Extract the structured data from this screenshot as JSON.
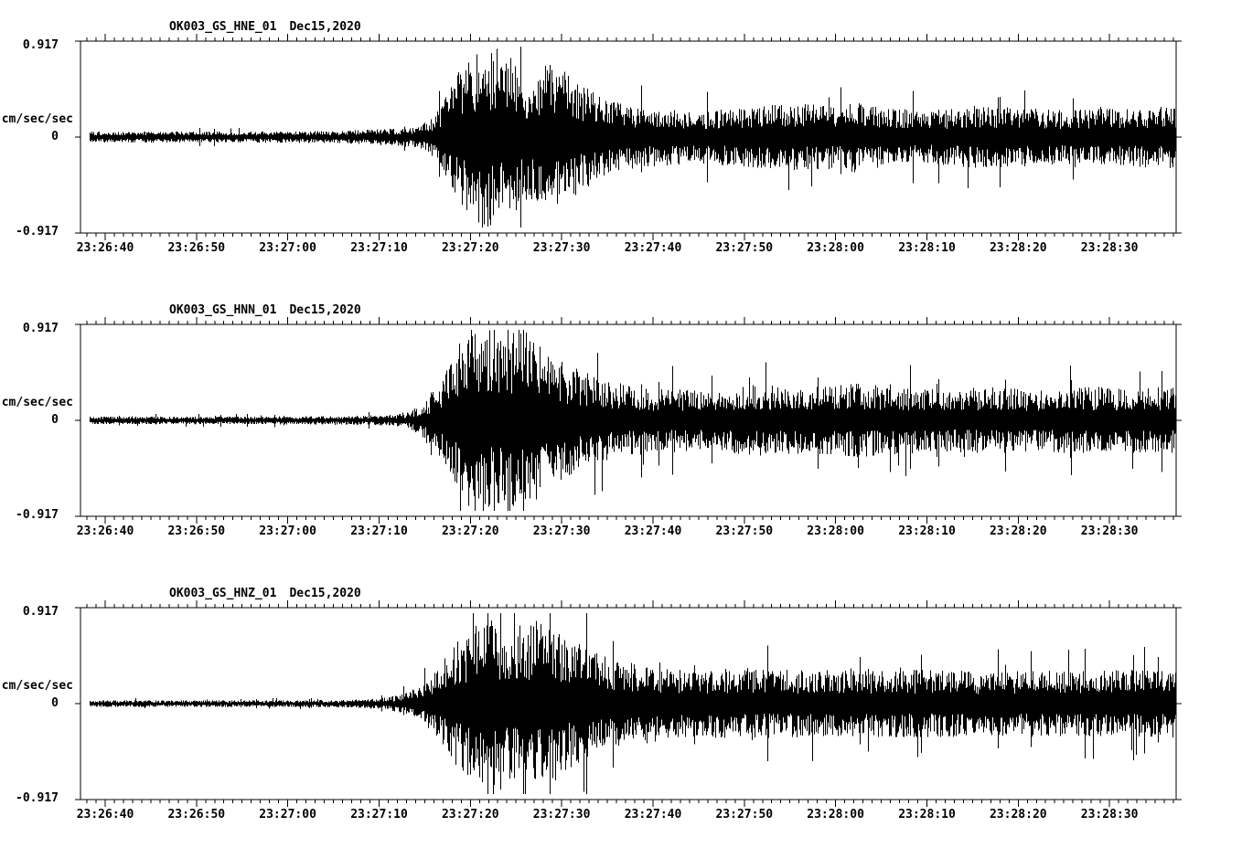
{
  "style": {
    "background": "#ffffff",
    "trace_color": "#000000",
    "axis_color": "#000000"
  },
  "chart_data": [
    {
      "type": "line",
      "subtype": "seismogram-minmax",
      "title": "OK003_GS_HNE_01",
      "date": "Dec15,2020",
      "ylabel": "cm/sec/sec",
      "ylim": [
        -0.917,
        0.917
      ],
      "yticks": [
        0.917,
        0,
        -0.917
      ],
      "ytick_labels": [
        "0.917",
        "0",
        "-0.917"
      ],
      "xtick_labels": [
        "23:26:40",
        "23:26:50",
        "23:27:00",
        "23:27:10",
        "23:27:20",
        "23:27:30",
        "23:27:40",
        "23:27:50",
        "23:28:00",
        "23:28:10",
        "23:28:20",
        "23:28:30"
      ],
      "xtick_offset_seconds": 2.7,
      "xtick_interval_seconds": 10,
      "minor_tick_seconds": 1,
      "duration_seconds": 120,
      "trace_start_seconds": 1.0,
      "grid": false,
      "legend": false,
      "envelope_t_amp": [
        [
          0,
          0.05
        ],
        [
          20,
          0.05
        ],
        [
          28,
          0.055
        ],
        [
          32,
          0.07
        ],
        [
          35,
          0.08
        ],
        [
          37,
          0.1
        ],
        [
          39,
          0.22
        ],
        [
          41,
          0.55
        ],
        [
          43,
          0.75
        ],
        [
          45,
          0.82
        ],
        [
          47,
          0.72
        ],
        [
          49,
          0.55
        ],
        [
          51,
          0.66
        ],
        [
          53,
          0.6
        ],
        [
          56,
          0.42
        ],
        [
          59,
          0.3
        ],
        [
          63,
          0.26
        ],
        [
          68,
          0.24
        ],
        [
          73,
          0.27
        ],
        [
          78,
          0.3
        ],
        [
          83,
          0.28
        ],
        [
          85,
          0.33
        ],
        [
          88,
          0.26
        ],
        [
          93,
          0.24
        ],
        [
          98,
          0.28
        ],
        [
          103,
          0.26
        ],
        [
          108,
          0.24
        ],
        [
          113,
          0.26
        ],
        [
          120,
          0.28
        ]
      ],
      "spike_probability": 0.02,
      "seed": 101
    },
    {
      "type": "line",
      "subtype": "seismogram-minmax",
      "title": "OK003_GS_HNN_01",
      "date": "Dec15,2020",
      "ylabel": "cm/sec/sec",
      "ylim": [
        -0.917,
        0.917
      ],
      "yticks": [
        0.917,
        0,
        -0.917
      ],
      "ytick_labels": [
        "0.917",
        "0",
        "-0.917"
      ],
      "xtick_labels": [
        "23:26:40",
        "23:26:50",
        "23:27:00",
        "23:27:10",
        "23:27:20",
        "23:27:30",
        "23:27:40",
        "23:27:50",
        "23:28:00",
        "23:28:10",
        "23:28:20",
        "23:28:30"
      ],
      "xtick_offset_seconds": 2.7,
      "xtick_interval_seconds": 10,
      "minor_tick_seconds": 1,
      "duration_seconds": 120,
      "trace_start_seconds": 1.0,
      "grid": false,
      "legend": false,
      "envelope_t_amp": [
        [
          0,
          0.035
        ],
        [
          20,
          0.035
        ],
        [
          30,
          0.04
        ],
        [
          34,
          0.05
        ],
        [
          36,
          0.08
        ],
        [
          38,
          0.18
        ],
        [
          40,
          0.45
        ],
        [
          42,
          0.8
        ],
        [
          44,
          0.85
        ],
        [
          46,
          0.75
        ],
        [
          48,
          0.85
        ],
        [
          50,
          0.7
        ],
        [
          52,
          0.55
        ],
        [
          55,
          0.45
        ],
        [
          58,
          0.35
        ],
        [
          62,
          0.3
        ],
        [
          68,
          0.28
        ],
        [
          74,
          0.32
        ],
        [
          80,
          0.3
        ],
        [
          85,
          0.33
        ],
        [
          90,
          0.3
        ],
        [
          95,
          0.28
        ],
        [
          100,
          0.3
        ],
        [
          105,
          0.28
        ],
        [
          110,
          0.3
        ],
        [
          115,
          0.29
        ],
        [
          120,
          0.3
        ]
      ],
      "spike_probability": 0.05,
      "seed": 202
    },
    {
      "type": "line",
      "subtype": "seismogram-minmax",
      "title": "OK003_GS_HNZ_01",
      "date": "Dec15,2020",
      "ylabel": "cm/sec/sec",
      "ylim": [
        -0.917,
        0.917
      ],
      "yticks": [
        0.917,
        0,
        -0.917
      ],
      "ytick_labels": [
        "0.917",
        "0",
        "-0.917"
      ],
      "xtick_labels": [
        "23:26:40",
        "23:26:50",
        "23:27:00",
        "23:27:10",
        "23:27:20",
        "23:27:30",
        "23:27:40",
        "23:27:50",
        "23:28:00",
        "23:28:10",
        "23:28:20",
        "23:28:30"
      ],
      "xtick_offset_seconds": 2.7,
      "xtick_interval_seconds": 10,
      "minor_tick_seconds": 1,
      "duration_seconds": 120,
      "trace_start_seconds": 1.0,
      "grid": false,
      "legend": false,
      "envelope_t_amp": [
        [
          0,
          0.03
        ],
        [
          20,
          0.03
        ],
        [
          30,
          0.035
        ],
        [
          33,
          0.05
        ],
        [
          35,
          0.08
        ],
        [
          37,
          0.15
        ],
        [
          39,
          0.3
        ],
        [
          41,
          0.55
        ],
        [
          43,
          0.7
        ],
        [
          45,
          0.75
        ],
        [
          47,
          0.68
        ],
        [
          49,
          0.72
        ],
        [
          51,
          0.78
        ],
        [
          53,
          0.6
        ],
        [
          56,
          0.48
        ],
        [
          59,
          0.4
        ],
        [
          63,
          0.34
        ],
        [
          68,
          0.3
        ],
        [
          73,
          0.32
        ],
        [
          78,
          0.3
        ],
        [
          83,
          0.32
        ],
        [
          88,
          0.3
        ],
        [
          93,
          0.31
        ],
        [
          98,
          0.29
        ],
        [
          103,
          0.3
        ],
        [
          108,
          0.29
        ],
        [
          113,
          0.3
        ],
        [
          120,
          0.31
        ]
      ],
      "spike_probability": 0.05,
      "seed": 303
    }
  ]
}
